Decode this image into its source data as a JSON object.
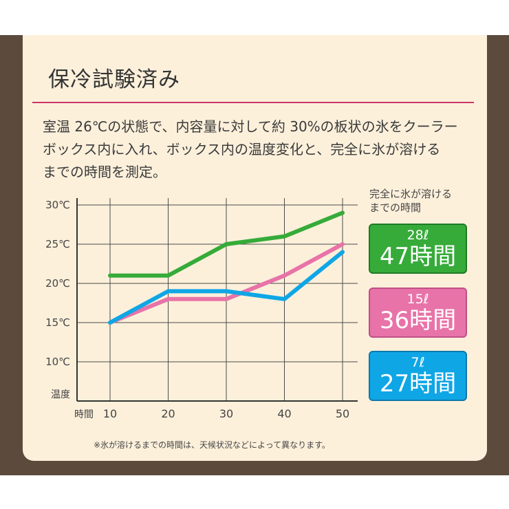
{
  "title": "保冷試験済み",
  "description": [
    "室温 26℃の状態で、内容量に対して約 30%の板状の氷をクーラー",
    "ボックス内に入れ、ボックス内の温度変化と、完全に氷が溶ける",
    "までの時間を測定。"
  ],
  "legend_header": [
    "完全に氷が溶ける",
    "までの時間"
  ],
  "boxes": [
    {
      "capacity": "28ℓ",
      "time": "47時間",
      "color": "#36ab39"
    },
    {
      "capacity": "15ℓ",
      "time": "36時間",
      "color": "#e873a8"
    },
    {
      "capacity": "7ℓ",
      "time": "27時間",
      "color": "#0fa6e6"
    }
  ],
  "footnote": "※氷が溶けるまでの時間は、天候状況などによって異なります。",
  "chart_data": {
    "type": "line",
    "title": "",
    "xlabel": "時間",
    "ylabel": "温度",
    "x": [
      10,
      20,
      30,
      40,
      50
    ],
    "x_ticks": [
      "10",
      "20",
      "30",
      "40",
      "50"
    ],
    "y_ticks": [
      "10℃",
      "15℃",
      "20℃",
      "25℃",
      "30℃"
    ],
    "y_tick_values": [
      10,
      15,
      20,
      25,
      30
    ],
    "ylim": [
      5,
      30
    ],
    "grid": true,
    "series": [
      {
        "name": "28ℓ",
        "color": "#36ab39",
        "values": [
          21,
          21,
          25,
          26,
          29
        ]
      },
      {
        "name": "15ℓ",
        "color": "#e873a8",
        "values": [
          15,
          18,
          18,
          21,
          25
        ]
      },
      {
        "name": "7ℓ",
        "color": "#0fa6e6",
        "values": [
          15,
          19,
          19,
          18,
          24
        ]
      }
    ]
  }
}
